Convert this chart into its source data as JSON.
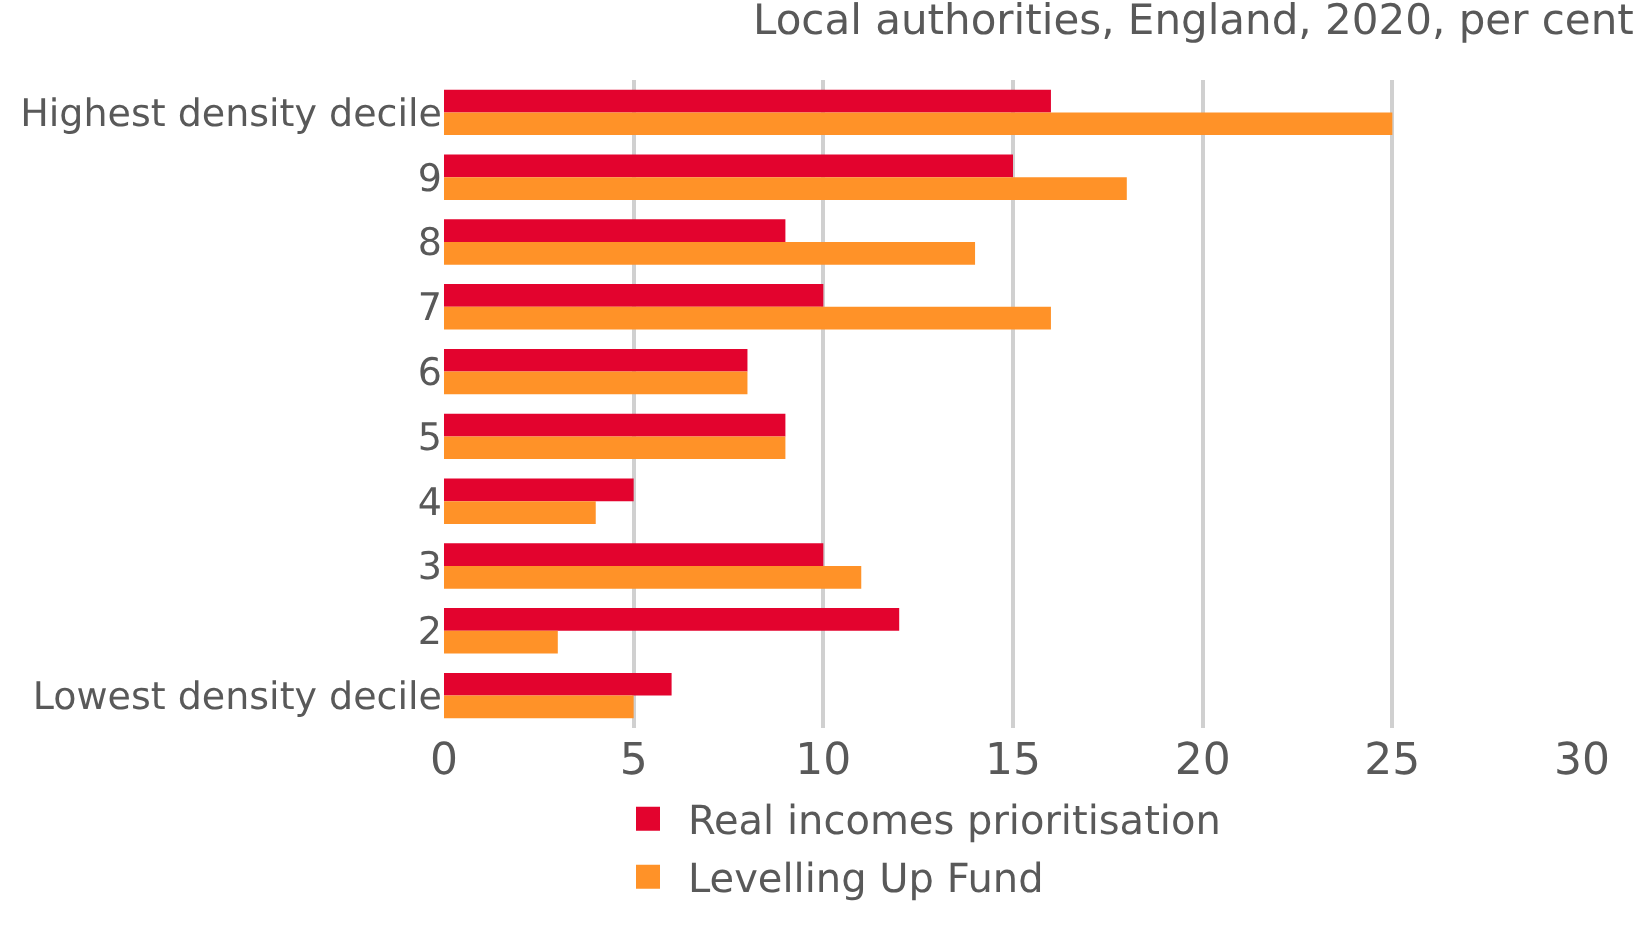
{
  "chart_data": {
    "type": "bar",
    "orientation": "horizontal",
    "subtitle": "Local authorities, England, 2020, per cent",
    "categories": [
      "Highest density decile",
      "9",
      "8",
      "7",
      "6",
      "5",
      "4",
      "3",
      "2",
      "Lowest density decile"
    ],
    "series": [
      {
        "name": "Real incomes prioritisation",
        "color": "#e3032e",
        "values": [
          16,
          15,
          9,
          10,
          8,
          9,
          5,
          10,
          12,
          6
        ]
      },
      {
        "name": "Levelling Up Fund",
        "color": "#ff9228",
        "values": [
          25,
          18,
          14,
          16,
          8,
          9,
          4,
          11,
          3,
          5
        ]
      }
    ],
    "xlim": [
      0,
      30
    ],
    "xticks": [
      0,
      5,
      10,
      15,
      20,
      25,
      30
    ],
    "grid": "x",
    "legend": "bottom"
  }
}
